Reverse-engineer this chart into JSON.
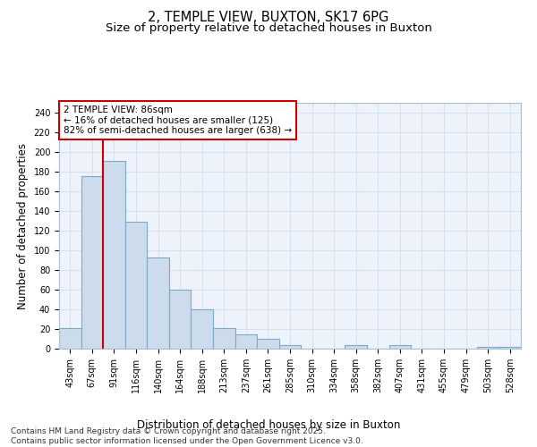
{
  "title_line1": "2, TEMPLE VIEW, BUXTON, SK17 6PG",
  "title_line2": "Size of property relative to detached houses in Buxton",
  "xlabel": "Distribution of detached houses by size in Buxton",
  "ylabel": "Number of detached properties",
  "categories": [
    "43sqm",
    "67sqm",
    "91sqm",
    "116sqm",
    "140sqm",
    "164sqm",
    "188sqm",
    "213sqm",
    "237sqm",
    "261sqm",
    "285sqm",
    "310sqm",
    "334sqm",
    "358sqm",
    "382sqm",
    "407sqm",
    "431sqm",
    "455sqm",
    "479sqm",
    "503sqm",
    "528sqm"
  ],
  "values": [
    21,
    175,
    191,
    129,
    93,
    60,
    40,
    21,
    15,
    10,
    4,
    0,
    0,
    4,
    0,
    4,
    0,
    0,
    0,
    2,
    2
  ],
  "bar_color": "#ccdcec",
  "bar_edge_color": "#7aaac8",
  "grid_color": "#d4dff0",
  "background_color": "#eef2fa",
  "vline_color": "#cc0000",
  "vline_x_index": 2,
  "annotation_text_line1": "2 TEMPLE VIEW: 86sqm",
  "annotation_text_line2": "← 16% of detached houses are smaller (125)",
  "annotation_text_line3": "82% of semi-detached houses are larger (638) →",
  "annotation_box_color": "#cc0000",
  "ylim": [
    0,
    250
  ],
  "yticks": [
    0,
    20,
    40,
    60,
    80,
    100,
    120,
    140,
    160,
    180,
    200,
    220,
    240
  ],
  "footer_text": "Contains HM Land Registry data © Crown copyright and database right 2025.\nContains public sector information licensed under the Open Government Licence v3.0.",
  "title_fontsize": 10.5,
  "subtitle_fontsize": 9.5,
  "axis_label_fontsize": 8.5,
  "tick_fontsize": 7,
  "annotation_fontsize": 7.5,
  "footer_fontsize": 6.5
}
